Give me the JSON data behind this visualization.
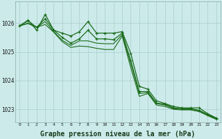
{
  "background_color": "#cceaea",
  "grid_color": "#aacccc",
  "line_color": "#1a6b1a",
  "marker_color": "#1a6b1a",
  "xlabel": "Graphe pression niveau de la mer (hPa)",
  "xlabel_fontsize": 7,
  "ylim": [
    1022.55,
    1026.75
  ],
  "xlim": [
    -0.5,
    23.5
  ],
  "yticks": [
    1023,
    1024,
    1025,
    1026
  ],
  "xticks": [
    0,
    1,
    2,
    3,
    4,
    5,
    6,
    7,
    8,
    9,
    10,
    11,
    12,
    13,
    14,
    15,
    16,
    17,
    18,
    19,
    20,
    21,
    22,
    23
  ],
  "series": [
    {
      "y": [
        1025.9,
        1026.1,
        1025.75,
        1026.3,
        1025.75,
        1025.65,
        1025.55,
        1025.7,
        1026.05,
        1025.65,
        1025.65,
        1025.65,
        1025.7,
        1024.95,
        1023.8,
        1023.7,
        1023.3,
        1023.2,
        1023.1,
        1023.05,
        1023.05,
        1023.05,
        1022.85,
        1022.7
      ],
      "marker": true,
      "lw": 0.9
    },
    {
      "y": [
        1025.9,
        1025.98,
        1025.85,
        1025.95,
        1025.68,
        1025.35,
        1025.15,
        1025.2,
        1025.18,
        1025.12,
        1025.08,
        1025.08,
        1025.55,
        1024.45,
        1023.45,
        1023.55,
        1023.15,
        1023.1,
        1023.0,
        1022.98,
        1022.98,
        1022.92,
        1022.78,
        1022.65
      ],
      "marker": false,
      "lw": 0.8
    },
    {
      "y": [
        1025.9,
        1026.0,
        1025.85,
        1026.05,
        1025.7,
        1025.4,
        1025.22,
        1025.38,
        1025.38,
        1025.3,
        1025.28,
        1025.28,
        1025.6,
        1024.6,
        1023.55,
        1023.58,
        1023.2,
        1023.15,
        1023.03,
        1023.0,
        1023.0,
        1022.95,
        1022.8,
        1022.67
      ],
      "marker": false,
      "lw": 0.8
    },
    {
      "y": [
        1025.9,
        1026.08,
        1025.85,
        1026.15,
        1025.75,
        1025.5,
        1025.3,
        1025.45,
        1025.75,
        1025.45,
        1025.45,
        1025.42,
        1025.65,
        1024.7,
        1023.62,
        1023.62,
        1023.22,
        1023.18,
        1023.05,
        1023.02,
        1023.02,
        1022.97,
        1022.82,
        1022.68
      ],
      "marker": true,
      "lw": 0.9
    }
  ]
}
